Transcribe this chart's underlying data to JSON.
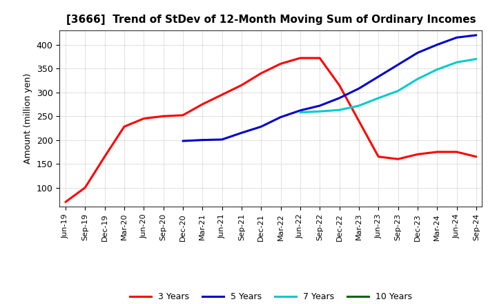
{
  "title": "[3666]  Trend of StDev of 12-Month Moving Sum of Ordinary Incomes",
  "ylabel": "Amount (million yen)",
  "background_color": "#ffffff",
  "grid_color": "#999999",
  "ylim": [
    60,
    430
  ],
  "yticks": [
    100,
    150,
    200,
    250,
    300,
    350,
    400
  ],
  "x_labels": [
    "Jun-19",
    "Sep-19",
    "Dec-19",
    "Mar-20",
    "Jun-20",
    "Sep-20",
    "Dec-20",
    "Mar-21",
    "Jun-21",
    "Sep-21",
    "Dec-21",
    "Mar-22",
    "Jun-22",
    "Sep-22",
    "Dec-22",
    "Mar-23",
    "Jun-23",
    "Sep-23",
    "Dec-23",
    "Mar-24",
    "Jun-24",
    "Sep-24"
  ],
  "series": {
    "3 Years": {
      "color": "#ff0000",
      "data": [
        70,
        100,
        165,
        228,
        245,
        250,
        252,
        275,
        295,
        315,
        340,
        360,
        372,
        372,
        315,
        240,
        165,
        160,
        170,
        175,
        175,
        165
      ]
    },
    "5 Years": {
      "color": "#0000cc",
      "data": [
        null,
        null,
        null,
        null,
        null,
        null,
        198,
        200,
        201,
        215,
        228,
        248,
        262,
        272,
        288,
        308,
        333,
        358,
        383,
        400,
        415,
        420
      ]
    },
    "7 Years": {
      "color": "#00cccc",
      "data": [
        null,
        null,
        null,
        null,
        null,
        null,
        null,
        null,
        null,
        null,
        null,
        null,
        258,
        260,
        263,
        272,
        288,
        303,
        328,
        348,
        363,
        370
      ]
    },
    "10 Years": {
      "color": "#006600",
      "data": [
        null,
        null,
        null,
        null,
        null,
        null,
        null,
        null,
        null,
        null,
        null,
        null,
        null,
        null,
        null,
        null,
        null,
        null,
        null,
        null,
        null,
        null
      ]
    }
  },
  "legend_colors": {
    "3 Years": "#ff0000",
    "5 Years": "#0000cc",
    "7 Years": "#00cccc",
    "10 Years": "#006600"
  }
}
